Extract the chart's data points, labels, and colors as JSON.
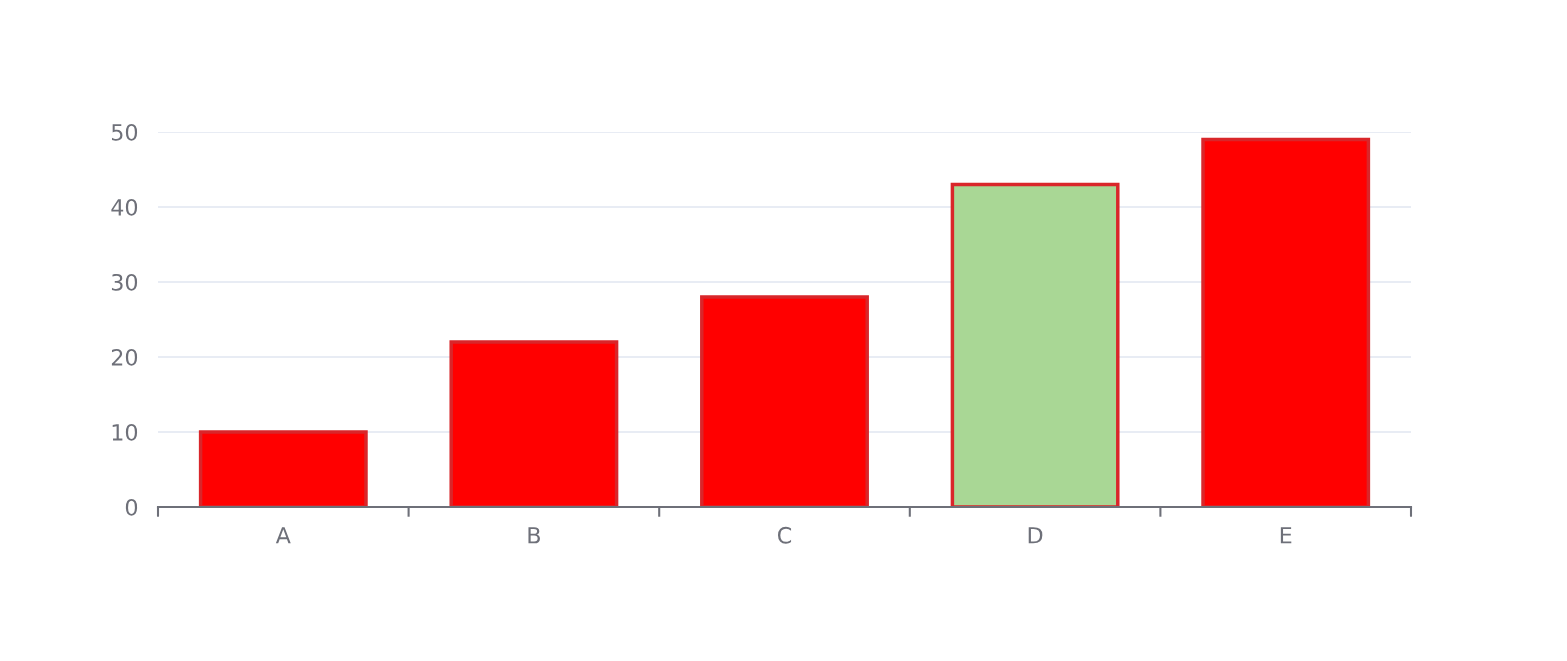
{
  "chart_data": {
    "type": "bar",
    "categories": [
      "A",
      "B",
      "C",
      "D",
      "E"
    ],
    "values": [
      10,
      22,
      28,
      43,
      49
    ],
    "colors": [
      "#ff0000",
      "#ff0000",
      "#ff0000",
      "#a9d795",
      "#ff0000"
    ],
    "ylim": [
      0,
      50
    ],
    "yticks": [
      0,
      10,
      20,
      30,
      40,
      50
    ],
    "grid": "y",
    "legend": false
  }
}
